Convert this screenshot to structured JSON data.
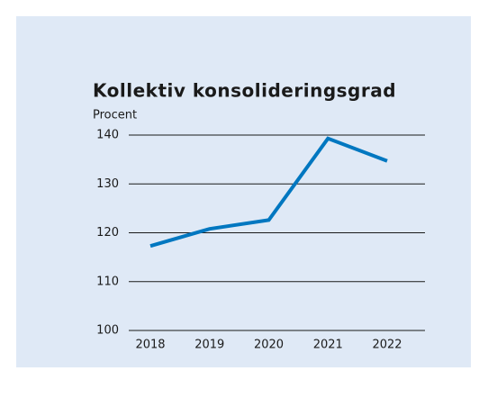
{
  "chart_data": {
    "type": "line",
    "title": "Kollektiv konsolideringsgrad",
    "y_label": "Procent",
    "categories": [
      "2018",
      "2019",
      "2020",
      "2021",
      "2022"
    ],
    "series": [
      {
        "name": "Kollektiv konsolideringsgrad",
        "color": "#0077c0",
        "values": [
          117.3,
          120.8,
          122.6,
          139.3,
          134.7
        ]
      }
    ],
    "ylim": [
      100,
      140
    ],
    "yticks": [
      100,
      110,
      120,
      130,
      140
    ],
    "grid": true
  }
}
